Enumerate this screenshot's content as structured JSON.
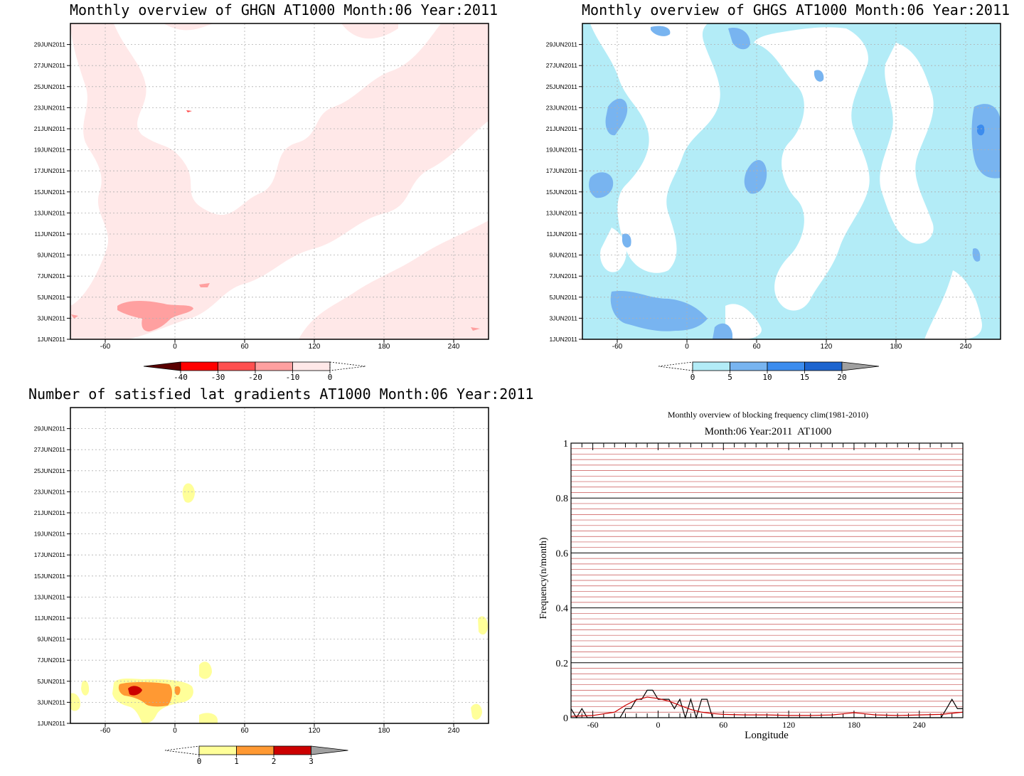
{
  "panels": {
    "ghgn": {
      "title": "Monthly overview of GHGN AT1000 Month:06 Year:2011",
      "colorbar": {
        "labels": [
          "-40",
          "-30",
          "-20",
          "-10",
          "0"
        ],
        "colors": [
          "#5a0000",
          "#ff0000",
          "#ff5050",
          "#ffa0a0",
          "#ffe8e8"
        ]
      }
    },
    "ghgs": {
      "title": "Monthly overview of GHGS AT1000 Month:06 Year:2011",
      "colorbar": {
        "labels": [
          "0",
          "5",
          "10",
          "15",
          "20"
        ],
        "colors": [
          "#b3ecf7",
          "#78b4f0",
          "#3c8cee",
          "#1c64cf",
          "#a0a0a0"
        ]
      }
    },
    "satisfied": {
      "title": "Number of satisfied lat gradients AT1000 Month:06 Year:2011",
      "colorbar": {
        "labels": [
          "0",
          "1",
          "2",
          "3"
        ],
        "colors": [
          "#ffff99",
          "#ff9933",
          "#cc0000",
          "#a0a0a0"
        ]
      }
    },
    "blocking": {
      "title": "Monthly overview of blocking frequency clim(1981-2010)",
      "subtitle": "Month:06 Year:2011  AT1000",
      "xlabel": "Longitude",
      "ylabel": "Frequency(n/month)"
    }
  },
  "chart_data": [
    {
      "type": "heatmap",
      "title": "Monthly overview of GHGN AT1000 Month:06 Year:2011",
      "x_ticks": [
        "-60",
        "0",
        "60",
        "120",
        "180",
        "240"
      ],
      "x_range": [
        -90,
        270
      ],
      "y_ticks": [
        "1JUN2011",
        "3JUN2011",
        "5JUN2011",
        "7JUN2011",
        "9JUN2011",
        "11JUN2011",
        "13JUN2011",
        "15JUN2011",
        "17JUN2011",
        "19JUN2011",
        "21JUN2011",
        "23JUN2011",
        "25JUN2011",
        "27JUN2011",
        "29JUN2011"
      ],
      "color_levels": [
        -40,
        -30,
        -20,
        -10,
        0
      ],
      "grid": true
    },
    {
      "type": "heatmap",
      "title": "Monthly overview of GHGS AT1000 Month:06 Year:2011",
      "x_ticks": [
        "-60",
        "0",
        "60",
        "120",
        "180",
        "240"
      ],
      "x_range": [
        -90,
        270
      ],
      "y_ticks": [
        "1JUN2011",
        "3JUN2011",
        "5JUN2011",
        "7JUN2011",
        "9JUN2011",
        "11JUN2011",
        "13JUN2011",
        "15JUN2011",
        "17JUN2011",
        "19JUN2011",
        "21JUN2011",
        "23JUN2011",
        "25JUN2011",
        "27JUN2011",
        "29JUN2011"
      ],
      "color_levels": [
        0,
        5,
        10,
        15,
        20
      ],
      "grid": true
    },
    {
      "type": "heatmap",
      "title": "Number of satisfied lat gradients AT1000 Month:06 Year:2011",
      "x_ticks": [
        "-60",
        "0",
        "60",
        "120",
        "180",
        "240"
      ],
      "x_range": [
        -90,
        270
      ],
      "y_ticks": [
        "1JUN2011",
        "3JUN2011",
        "5JUN2011",
        "7JUN2011",
        "9JUN2011",
        "11JUN2011",
        "13JUN2011",
        "15JUN2011",
        "17JUN2011",
        "19JUN2011",
        "21JUN2011",
        "23JUN2011",
        "25JUN2011",
        "27JUN2011",
        "29JUN2011"
      ],
      "color_levels": [
        0,
        1,
        2,
        3
      ],
      "grid": true
    },
    {
      "type": "line",
      "title": "Monthly overview of blocking frequency clim(1981-2010)",
      "subtitle": "Month:06 Year:2011  AT1000",
      "xlabel": "Longitude",
      "ylabel": "Frequency(n/month)",
      "x_ticks": [
        "-60",
        "0",
        "60",
        "120",
        "180",
        "240"
      ],
      "y_ticks": [
        "0",
        "0.2",
        "0.4",
        "0.6",
        "0.8",
        "1"
      ],
      "xlim": [
        -80,
        280
      ],
      "ylim": [
        0,
        1
      ],
      "series": [
        {
          "color": "#000000",
          "x": [
            -80,
            -75,
            -70,
            -65,
            -60,
            -55,
            -50,
            -45,
            -40,
            -35,
            -30,
            -25,
            -20,
            -15,
            -10,
            -5,
            0,
            5,
            10,
            15,
            20,
            25,
            30,
            35,
            40,
            45,
            50,
            55,
            60,
            65,
            70,
            240,
            245,
            250,
            255,
            260,
            265,
            270,
            275,
            280
          ],
          "y": [
            0.033,
            0.0,
            0.033,
            0.0,
            0.0,
            0.0,
            0.0,
            0.0,
            0.0,
            0.0,
            0.033,
            0.033,
            0.067,
            0.067,
            0.1,
            0.1,
            0.067,
            0.067,
            0.067,
            0.033,
            0.067,
            0.0,
            0.067,
            0.0,
            0.067,
            0.067,
            0.0,
            0.0,
            0.0,
            0.0,
            0.0,
            0.0,
            0.0,
            0.0,
            0.0,
            0.0,
            0.033,
            0.067,
            0.033,
            0.033
          ]
        },
        {
          "color": "#cc0000",
          "x": [
            -80,
            -60,
            -40,
            -30,
            -20,
            -10,
            0,
            10,
            20,
            30,
            40,
            50,
            60,
            80,
            100,
            120,
            140,
            160,
            180,
            200,
            220,
            240,
            260,
            280
          ],
          "y": [
            0.005,
            0.008,
            0.02,
            0.045,
            0.065,
            0.075,
            0.07,
            0.06,
            0.045,
            0.03,
            0.02,
            0.015,
            0.012,
            0.01,
            0.01,
            0.008,
            0.008,
            0.01,
            0.018,
            0.01,
            0.008,
            0.01,
            0.012,
            0.02
          ]
        }
      ],
      "grid": true
    }
  ]
}
